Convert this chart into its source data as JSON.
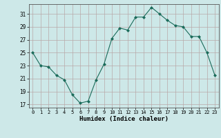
{
  "x": [
    0,
    1,
    2,
    3,
    4,
    5,
    6,
    7,
    8,
    9,
    10,
    11,
    12,
    13,
    14,
    15,
    16,
    17,
    18,
    19,
    20,
    21,
    22,
    23
  ],
  "y": [
    25,
    23,
    22.8,
    21.5,
    20.8,
    18.5,
    17.2,
    17.5,
    20.8,
    23.2,
    27.2,
    28.8,
    28.5,
    30.5,
    30.5,
    32,
    31,
    30,
    29.2,
    29,
    27.5,
    27.5,
    25,
    21.5
  ],
  "line_color": "#1a6b5a",
  "marker": "D",
  "marker_size": 2,
  "bg_color": "#cde8e8",
  "grid_color": "#b8a8a8",
  "xlabel": "Humidex (Indice chaleur)",
  "yticks": [
    17,
    19,
    21,
    23,
    25,
    27,
    29,
    31
  ],
  "xticks": [
    0,
    1,
    2,
    3,
    4,
    5,
    6,
    7,
    8,
    9,
    10,
    11,
    12,
    13,
    14,
    15,
    16,
    17,
    18,
    19,
    20,
    21,
    22,
    23
  ],
  "ylim": [
    16.5,
    32.5
  ],
  "xlim": [
    -0.5,
    23.5
  ]
}
